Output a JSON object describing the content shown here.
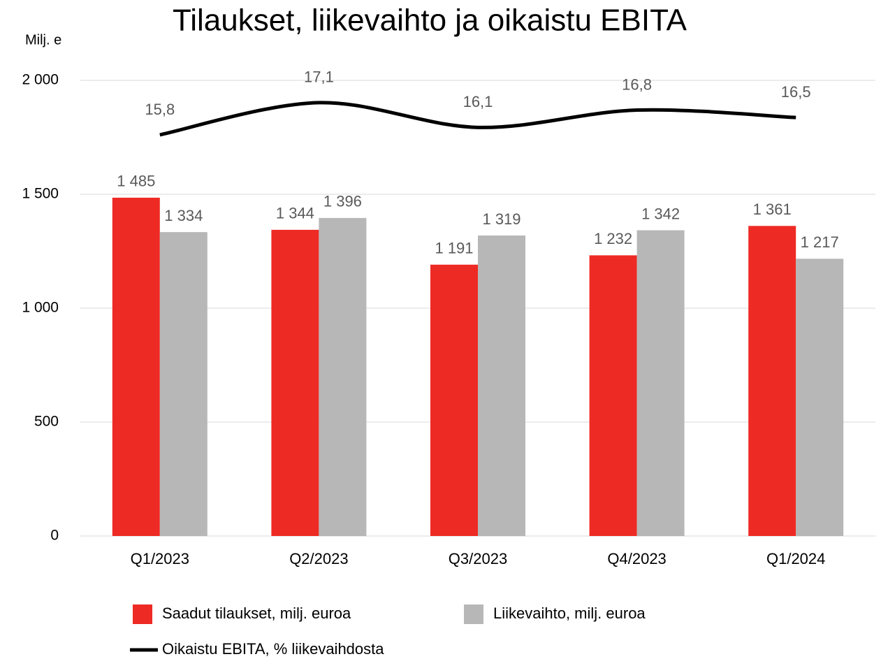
{
  "chart_data": {
    "type": "bar",
    "title": "Tilaukset, liikevaihto ja oikaistu EBITA",
    "y_label": "Milj. e",
    "categories": [
      "Q1/2023",
      "Q2/2023",
      "Q3/2023",
      "Q4/2023",
      "Q1/2024"
    ],
    "ylim": [
      0,
      2000
    ],
    "yticks": [
      0,
      500,
      {
        "value": 1000,
        "label": "1 000"
      },
      {
        "value": 1500,
        "label": "1 500"
      },
      {
        "value": 2000,
        "label": "2 000"
      }
    ],
    "y2lim": [
      -0.4,
      18
    ],
    "grid": true,
    "series": [
      {
        "name": "Saadut tilaukset, milj. euroa",
        "color": "#ee2a24",
        "values": [
          1485,
          1344,
          1191,
          1232,
          1361
        ],
        "value_labels": [
          "1 485",
          "1 344",
          "1 191",
          "1 232",
          "1 361"
        ]
      },
      {
        "name": "Liikevaihto, milj. euroa",
        "color": "#b7b7b7",
        "values": [
          1334,
          1396,
          1319,
          1342,
          1217
        ],
        "value_labels": [
          "1 334",
          "1 396",
          "1 319",
          "1 342",
          "1 217"
        ]
      },
      {
        "name": "Oikaistu EBITA, % liikevaihdosta",
        "color": "#000000",
        "type": "line",
        "axis": "y2",
        "values": [
          15.8,
          17.1,
          16.1,
          16.8,
          16.5
        ],
        "value_labels": [
          "15,8",
          "17,1",
          "16,1",
          "16,8",
          "16,5"
        ]
      }
    ]
  }
}
